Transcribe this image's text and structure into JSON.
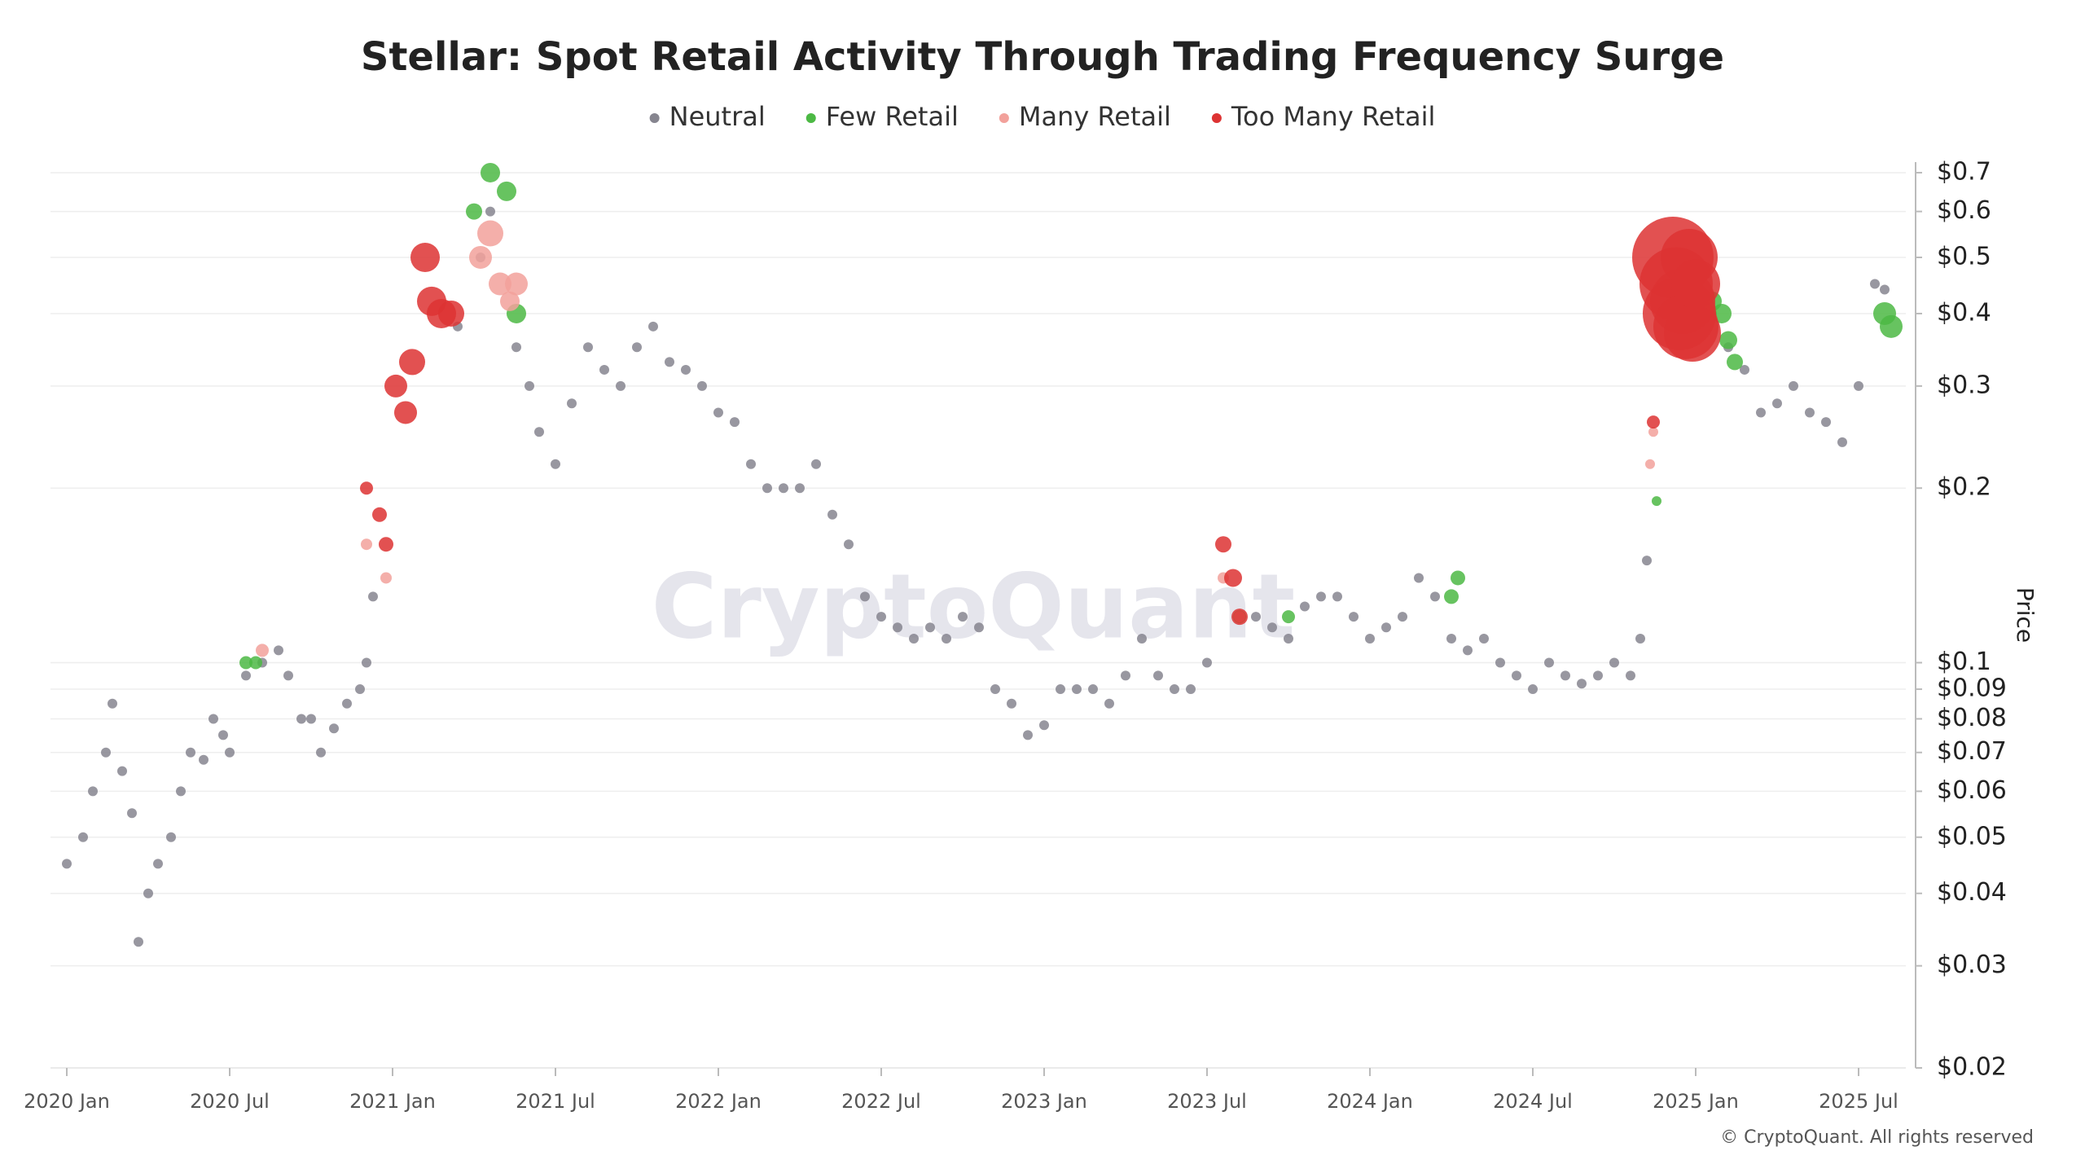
{
  "chart_data": {
    "type": "scatter",
    "title": "Stellar: Spot Retail Activity Through Trading Frequency Surge",
    "y_label": "Price",
    "watermark": "CryptoQuant",
    "credit": "© CryptoQuant. All rights reserved",
    "log_y": true,
    "grid": true,
    "legend_position": "top",
    "xlim": [
      2019.95,
      2025.64
    ],
    "xticks": [
      {
        "value": 2020,
        "label": "2020 Jan"
      },
      {
        "value": 2020.5,
        "label": "2020 Jul"
      },
      {
        "value": 2021,
        "label": "2021 Jan"
      },
      {
        "value": 2021.5,
        "label": "2021 Jul"
      },
      {
        "value": 2022,
        "label": "2022 Jan"
      },
      {
        "value": 2022.5,
        "label": "2022 Jul"
      },
      {
        "value": 2023,
        "label": "2023 Jan"
      },
      {
        "value": 2023.5,
        "label": "2023 Jul"
      },
      {
        "value": 2024,
        "label": "2024 Jan"
      },
      {
        "value": 2024.5,
        "label": "2024 Jul"
      },
      {
        "value": 2025,
        "label": "2025 Jan"
      },
      {
        "value": 2025.5,
        "label": "2025 Jul"
      }
    ],
    "ylim": [
      0.02,
      0.73
    ],
    "yticks": [
      {
        "value": 0.7,
        "label": "$0.7"
      },
      {
        "value": 0.6,
        "label": "$0.6"
      },
      {
        "value": 0.5,
        "label": "$0.5"
      },
      {
        "value": 0.4,
        "label": "$0.4"
      },
      {
        "value": 0.3,
        "label": "$0.3"
      },
      {
        "value": 0.2,
        "label": "$0.2"
      },
      {
        "value": 0.1,
        "label": "$0.1"
      },
      {
        "value": 0.09,
        "label": "$0.09"
      },
      {
        "value": 0.08,
        "label": "$0.08"
      },
      {
        "value": 0.07,
        "label": "$0.07"
      },
      {
        "value": 0.06,
        "label": "$0.06"
      },
      {
        "value": 0.05,
        "label": "$0.05"
      },
      {
        "value": 0.04,
        "label": "$0.04"
      },
      {
        "value": 0.03,
        "label": "$0.03"
      },
      {
        "value": 0.02,
        "label": "$0.02"
      }
    ],
    "series": [
      {
        "name": "Neutral",
        "color": "#86858f",
        "marker_size": 6,
        "x": [
          2020.0,
          2020.05,
          2020.08,
          2020.12,
          2020.14,
          2020.17,
          2020.2,
          2020.22,
          2020.25,
          2020.28,
          2020.32,
          2020.35,
          2020.38,
          2020.42,
          2020.45,
          2020.48,
          2020.5,
          2020.55,
          2020.6,
          2020.65,
          2020.68,
          2020.72,
          2020.75,
          2020.78,
          2020.82,
          2020.86,
          2020.9,
          2020.92,
          2020.94,
          2021.2,
          2021.27,
          2021.3,
          2021.38,
          2021.42,
          2021.45,
          2021.5,
          2021.55,
          2021.6,
          2021.65,
          2021.7,
          2021.75,
          2021.8,
          2021.85,
          2021.9,
          2021.95,
          2022.0,
          2022.05,
          2022.1,
          2022.15,
          2022.2,
          2022.25,
          2022.3,
          2022.35,
          2022.4,
          2022.45,
          2022.5,
          2022.55,
          2022.6,
          2022.65,
          2022.7,
          2022.75,
          2022.8,
          2022.85,
          2022.9,
          2022.95,
          2023.0,
          2023.05,
          2023.1,
          2023.15,
          2023.2,
          2023.25,
          2023.3,
          2023.35,
          2023.4,
          2023.45,
          2023.5,
          2023.65,
          2023.7,
          2023.75,
          2023.8,
          2023.85,
          2023.9,
          2023.95,
          2024.0,
          2024.05,
          2024.1,
          2024.15,
          2024.2,
          2024.25,
          2024.3,
          2024.35,
          2024.4,
          2024.45,
          2024.5,
          2024.55,
          2024.6,
          2024.65,
          2024.7,
          2024.75,
          2024.8,
          2024.83,
          2024.85,
          2025.05,
          2025.1,
          2025.15,
          2025.2,
          2025.25,
          2025.3,
          2025.35,
          2025.4,
          2025.45,
          2025.5,
          2025.55,
          2025.58
        ],
        "values": [
          0.045,
          0.05,
          0.06,
          0.07,
          0.085,
          0.065,
          0.055,
          0.033,
          0.04,
          0.045,
          0.05,
          0.06,
          0.07,
          0.068,
          0.08,
          0.075,
          0.07,
          0.095,
          0.1,
          0.105,
          0.095,
          0.08,
          0.08,
          0.07,
          0.077,
          0.085,
          0.09,
          0.1,
          0.13,
          0.38,
          0.5,
          0.6,
          0.35,
          0.3,
          0.25,
          0.22,
          0.28,
          0.35,
          0.32,
          0.3,
          0.35,
          0.38,
          0.33,
          0.32,
          0.3,
          0.27,
          0.26,
          0.22,
          0.2,
          0.2,
          0.2,
          0.22,
          0.18,
          0.16,
          0.13,
          0.12,
          0.115,
          0.11,
          0.115,
          0.11,
          0.12,
          0.115,
          0.09,
          0.085,
          0.075,
          0.078,
          0.09,
          0.09,
          0.09,
          0.085,
          0.095,
          0.11,
          0.095,
          0.09,
          0.09,
          0.1,
          0.12,
          0.115,
          0.11,
          0.125,
          0.13,
          0.13,
          0.12,
          0.11,
          0.115,
          0.12,
          0.14,
          0.13,
          0.11,
          0.105,
          0.11,
          0.1,
          0.095,
          0.09,
          0.1,
          0.095,
          0.092,
          0.095,
          0.1,
          0.095,
          0.11,
          0.15,
          0.4,
          0.35,
          0.32,
          0.27,
          0.28,
          0.3,
          0.27,
          0.26,
          0.24,
          0.3,
          0.45,
          0.44
        ]
      },
      {
        "name": "Few Retail",
        "color": "#4cb944",
        "x": [
          2020.55,
          2020.58,
          2021.25,
          2021.3,
          2021.35,
          2021.38,
          2023.6,
          2023.75,
          2024.25,
          2024.27,
          2024.88,
          2025.05,
          2025.08,
          2025.1,
          2025.12,
          2025.58,
          2025.6
        ],
        "values": [
          0.1,
          0.1,
          0.6,
          0.7,
          0.65,
          0.4,
          0.12,
          0.12,
          0.13,
          0.14,
          0.19,
          0.42,
          0.4,
          0.36,
          0.33,
          0.4,
          0.38
        ],
        "sizes": [
          8,
          8,
          10,
          12,
          12,
          12,
          8,
          8,
          9,
          9,
          6,
          12,
          12,
          11,
          10,
          14,
          14
        ]
      },
      {
        "name": "Many Retail",
        "color": "#f2a19b",
        "x": [
          2020.6,
          2020.92,
          2020.98,
          2021.27,
          2021.3,
          2021.33,
          2021.36,
          2021.38,
          2023.55,
          2023.6,
          2024.86,
          2024.87
        ],
        "values": [
          0.105,
          0.16,
          0.14,
          0.5,
          0.55,
          0.45,
          0.42,
          0.45,
          0.14,
          0.12,
          0.22,
          0.25
        ],
        "sizes": [
          8,
          7,
          7,
          14,
          16,
          14,
          12,
          14,
          7,
          7,
          6,
          6
        ]
      },
      {
        "name": "Too Many Retail",
        "color": "#dd3333",
        "x": [
          2020.92,
          2020.96,
          2020.98,
          2021.01,
          2021.04,
          2021.06,
          2021.1,
          2021.12,
          2021.15,
          2021.18,
          2023.55,
          2023.58,
          2023.6,
          2024.87,
          2024.93,
          2024.94,
          2024.95,
          2024.96,
          2024.97,
          2024.98,
          2024.99,
          2025.0
        ],
        "values": [
          0.2,
          0.18,
          0.16,
          0.3,
          0.27,
          0.33,
          0.5,
          0.42,
          0.4,
          0.4,
          0.16,
          0.14,
          0.12,
          0.26,
          0.5,
          0.45,
          0.4,
          0.42,
          0.38,
          0.5,
          0.37,
          0.45
        ],
        "sizes": [
          8,
          9,
          9,
          14,
          14,
          16,
          18,
          18,
          18,
          16,
          10,
          11,
          10,
          8,
          50,
          45,
          45,
          40,
          40,
          35,
          35,
          30
        ]
      }
    ]
  }
}
